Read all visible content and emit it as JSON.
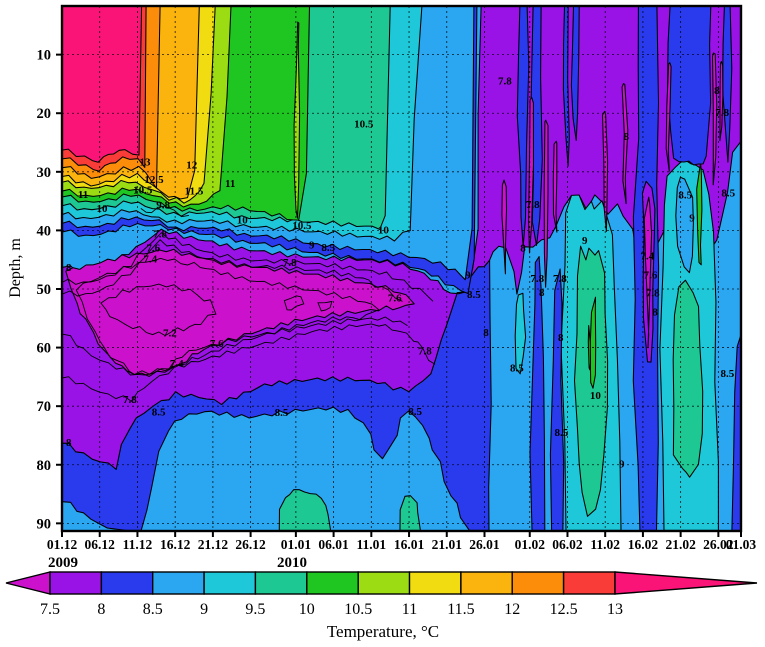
{
  "figure": {
    "y_axis_title": "Depth, m",
    "colorbar_title": "Temperature, °C",
    "year_labels": [
      {
        "text": "2009"
      },
      {
        "text": "2010"
      }
    ]
  },
  "chart_data": {
    "type": "filled_contour",
    "title": "Temperature, °C",
    "x_axis": {
      "label": "date",
      "start": "01.12.2009",
      "end": "01.03.2010",
      "ticks": [
        {
          "label": "01.12",
          "day": 0
        },
        {
          "label": "06.12",
          "day": 5
        },
        {
          "label": "11.12",
          "day": 10
        },
        {
          "label": "16.12",
          "day": 15
        },
        {
          "label": "21.12",
          "day": 20
        },
        {
          "label": "26.12",
          "day": 25
        },
        {
          "label": "01.01",
          "day": 31
        },
        {
          "label": "06.01",
          "day": 36
        },
        {
          "label": "11.01",
          "day": 41
        },
        {
          "label": "16.01",
          "day": 46
        },
        {
          "label": "21.01",
          "day": 51
        },
        {
          "label": "26.01",
          "day": 56
        },
        {
          "label": "01.02",
          "day": 62
        },
        {
          "label": "06.02",
          "day": 67
        },
        {
          "label": "11.02",
          "day": 72
        },
        {
          "label": "16.02",
          "day": 77
        },
        {
          "label": "21.02",
          "day": 82
        },
        {
          "label": "26.02",
          "day": 87
        },
        {
          "label": "01.03",
          "day": 90
        }
      ]
    },
    "y_axis": {
      "label": "Depth, m",
      "ticks": [
        10,
        20,
        30,
        40,
        50,
        60,
        70,
        80,
        90
      ],
      "range_m": [
        2,
        91
      ],
      "inverted": true
    },
    "fill_levels": [
      7.5,
      8,
      8.5,
      9,
      9.5,
      10,
      10.5,
      11,
      11.5,
      12,
      12.5,
      13
    ],
    "extra_line_levels": [
      7.2,
      7.4,
      7.6,
      7.8,
      9.8
    ],
    "palette": {
      "below": "#CB11CB",
      "segments": [
        "#9913E6",
        "#2A3BEE",
        "#2BA6F0",
        "#1FC8D8",
        "#1EC893",
        "#1FC521",
        "#9BDC12",
        "#F0DC11",
        "#FBB40D",
        "#FB8D0B",
        "#FA3C38"
      ],
      "above": "#FA1478"
    },
    "colorbar": {
      "tick_labels": [
        "7.5",
        "8",
        "8.5",
        "9",
        "9.5",
        "10",
        "10.5",
        "11",
        "11.5",
        "12",
        "12.5",
        "13"
      ],
      "left_arrow": true,
      "right_arrow": true,
      "title": "Temperature, °C"
    },
    "contour_labels": [
      [
        "13",
        11.0,
        28.3
      ],
      [
        "12.5",
        12.2,
        31.3
      ],
      [
        "12",
        17.2,
        28.8
      ],
      [
        "11.5",
        17.5,
        33.3
      ],
      [
        "11",
        2.8,
        33.9
      ],
      [
        "11",
        22.3,
        32.0
      ],
      [
        "10.5",
        10.7,
        33.1
      ],
      [
        "10.5",
        40.0,
        21.8
      ],
      [
        "10.5",
        31.8,
        39.2
      ],
      [
        "10",
        5.3,
        36.3
      ],
      [
        "10",
        23.9,
        38.2
      ],
      [
        "10",
        42.6,
        39.9
      ],
      [
        "9.8",
        13.4,
        35.7
      ],
      [
        "9",
        33.1,
        42.5
      ],
      [
        "8.5",
        35.3,
        42.9
      ],
      [
        "9",
        53.8,
        47.6
      ],
      [
        "8.5",
        54.6,
        50.9
      ],
      [
        "8",
        56.2,
        57.4
      ],
      [
        "7.8",
        13.0,
        40.6
      ],
      [
        "7.6",
        12.1,
        43.0
      ],
      [
        "7.4",
        11.7,
        44.9
      ],
      [
        "7.2",
        14.3,
        57.5
      ],
      [
        "7.4",
        15.2,
        62.7
      ],
      [
        "7.6",
        20.5,
        59.3
      ],
      [
        "7.8",
        30.2,
        45.5
      ],
      [
        "7.6",
        44.1,
        51.5
      ],
      [
        "7.8",
        48.1,
        60.6
      ],
      [
        "7.8",
        9.0,
        68.9
      ],
      [
        "8",
        0.9,
        76.2
      ],
      [
        "8",
        0.9,
        46.3
      ],
      [
        "8.5",
        12.8,
        71.0
      ],
      [
        "8.5",
        29.1,
        71.1
      ],
      [
        "8.5",
        46.8,
        70.9
      ],
      [
        "7.8",
        58.7,
        14.5
      ],
      [
        "7.8",
        62.4,
        35.6
      ],
      [
        "8",
        61.1,
        43.0
      ],
      [
        "7.8",
        63.0,
        48.2
      ],
      [
        "7.8",
        66.0,
        48.2
      ],
      [
        "8",
        63.6,
        50.6
      ],
      [
        "8",
        66.1,
        58.3
      ],
      [
        "8.5",
        60.3,
        63.5
      ],
      [
        "8.5",
        66.2,
        74.5
      ],
      [
        "9",
        69.3,
        41.7
      ],
      [
        "10",
        70.7,
        68.2
      ],
      [
        "9",
        74.2,
        79.9
      ],
      [
        "8",
        74.8,
        24.0
      ],
      [
        "7.4",
        77.6,
        44.4
      ],
      [
        "7.6",
        78.0,
        47.6
      ],
      [
        "7.8",
        78.3,
        50.7
      ],
      [
        "8",
        78.6,
        53.9
      ],
      [
        "8.5",
        82.6,
        34.0
      ],
      [
        "9",
        83.5,
        37.9
      ],
      [
        "8.5",
        88.2,
        64.4
      ],
      [
        "8.5",
        88.3,
        33.6
      ],
      [
        "8",
        86.8,
        16.1
      ],
      [
        "7.8",
        87.5,
        19.9
      ]
    ],
    "grid_estimate": {
      "dates": [
        "01.12",
        "06.12",
        "11.12",
        "16.12",
        "21.12",
        "26.12",
        "01.01",
        "06.01",
        "11.01",
        "16.01",
        "21.01",
        "26.01",
        "01.02",
        "06.02",
        "11.02",
        "16.02",
        "21.02",
        "26.02",
        "01.03"
      ],
      "days": [
        0,
        5,
        10,
        15,
        20,
        25,
        31,
        36,
        41,
        46,
        51,
        56,
        62,
        67,
        72,
        77,
        82,
        87,
        90
      ],
      "depths_m": [
        5,
        15,
        25,
        35,
        45,
        55,
        65,
        75,
        85
      ],
      "temperature_c": [
        [
          13.3,
          13.3,
          13.1,
          12.3,
          11.3,
          10.8,
          10.3,
          10.3,
          9.7,
          9.3,
          9.1,
          7.9,
          7.8,
          7.7,
          7.4,
          7.7,
          8.2,
          7.7,
          8.2
        ],
        [
          13.3,
          13.3,
          13.1,
          12.3,
          11.3,
          10.8,
          10.3,
          10.3,
          9.7,
          9.3,
          9.1,
          7.9,
          7.8,
          7.7,
          7.4,
          7.7,
          8.2,
          7.7,
          8.1
        ],
        [
          13.3,
          13.3,
          13.0,
          12.2,
          11.3,
          10.8,
          10.3,
          10.4,
          9.7,
          9.3,
          9.0,
          7.9,
          7.8,
          7.7,
          7.5,
          7.8,
          8.2,
          7.8,
          8.2
        ],
        [
          10.8,
          10.2,
          9.6,
          8.8,
          9.9,
          9.9,
          9.8,
          9.7,
          9.3,
          9.0,
          8.9,
          7.9,
          7.8,
          7.6,
          8.6,
          7.6,
          8.8,
          8.6,
          8.0
        ],
        [
          8.0,
          7.8,
          7.6,
          7.4,
          7.4,
          7.5,
          7.6,
          7.6,
          7.6,
          7.7,
          8.2,
          8.6,
          7.9,
          8.3,
          9.0,
          7.8,
          9.2,
          8.9,
          8.3
        ],
        [
          7.7,
          7.3,
          7.2,
          7.3,
          7.4,
          7.4,
          7.4,
          7.5,
          7.5,
          7.6,
          7.7,
          8.3,
          8.0,
          8.4,
          9.4,
          8.4,
          9.3,
          9.4,
          8.4
        ],
        [
          7.5,
          7.4,
          7.5,
          7.6,
          7.7,
          7.8,
          7.8,
          7.9,
          7.9,
          8.0,
          8.2,
          8.4,
          8.3,
          8.5,
          9.8,
          8.6,
          9.2,
          9.5,
          8.5
        ],
        [
          8.2,
          8.3,
          8.4,
          8.7,
          8.8,
          8.6,
          8.7,
          8.8,
          8.7,
          8.4,
          8.4,
          8.6,
          8.5,
          8.6,
          9.1,
          8.7,
          8.9,
          9.3,
          8.6
        ],
        [
          8.4,
          8.7,
          8.8,
          8.8,
          8.8,
          8.7,
          8.8,
          8.9,
          8.8,
          8.8,
          8.7,
          8.7,
          8.7,
          8.7,
          8.9,
          8.8,
          8.8,
          9.2,
          8.7
        ]
      ]
    }
  }
}
